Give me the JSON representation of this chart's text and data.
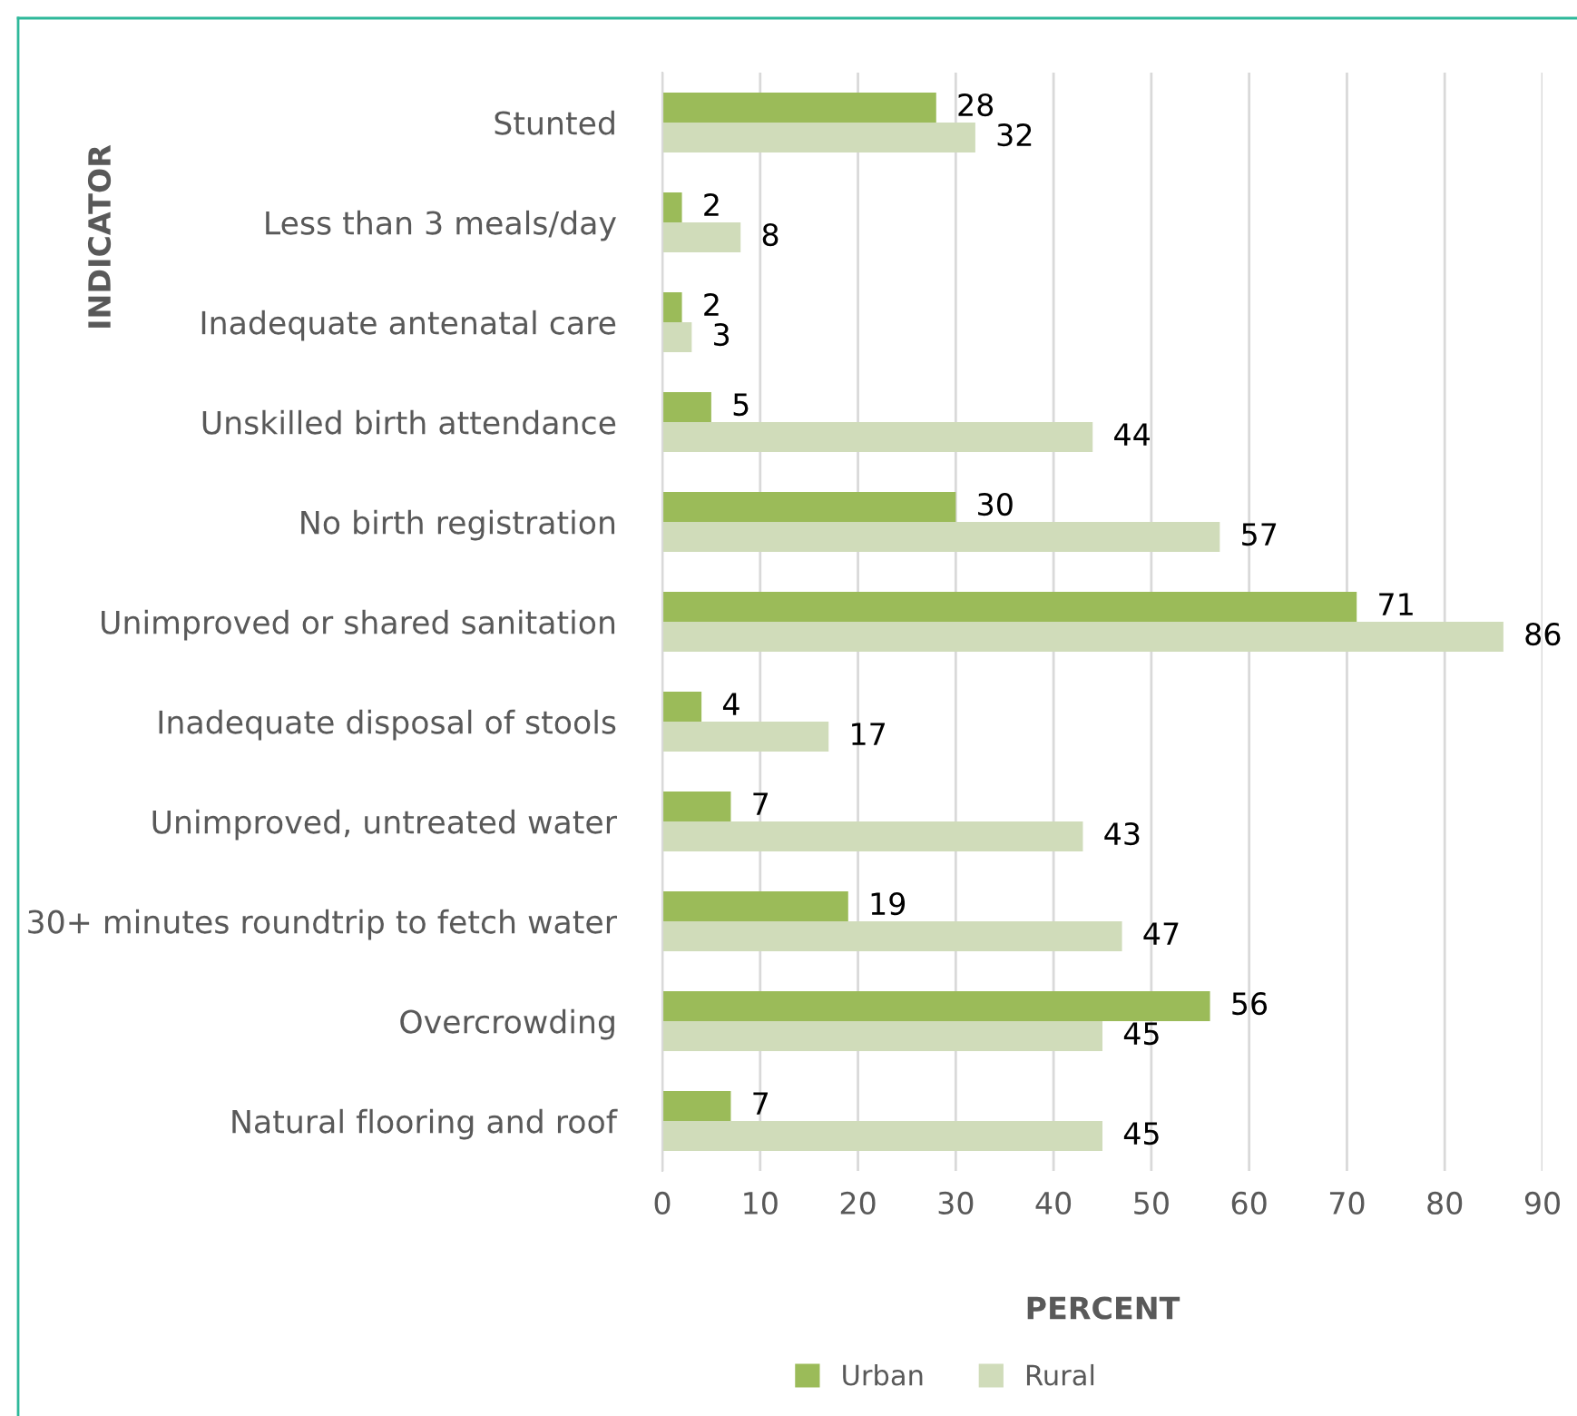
{
  "chart_data": {
    "type": "bar",
    "orientation": "horizontal",
    "xlabel": "PERCENT",
    "ylabel": "INDICATOR",
    "categories": [
      "Stunted",
      "Less than 3 meals/day",
      "Inadequate antenatal care",
      "Unskilled birth attendance",
      "No birth registration",
      "Unimproved or shared sanitation",
      "Inadequate disposal of stools",
      "Unimproved, untreated water",
      "30+ minutes roundtrip to fetch water",
      "Overcrowding",
      "Natural flooring and roof"
    ],
    "series": [
      {
        "name": "Urban",
        "color": "#9bbb59",
        "values": [
          28,
          2,
          2,
          5,
          30,
          71,
          4,
          7,
          19,
          56,
          7
        ]
      },
      {
        "name": "Rural",
        "color": "#d0dcba",
        "values": [
          32,
          8,
          3,
          44,
          57,
          86,
          17,
          43,
          47,
          45,
          45
        ]
      }
    ],
    "xlim": [
      0,
      90
    ],
    "xticks": [
      0,
      10,
      20,
      30,
      40,
      50,
      60,
      70,
      80,
      90
    ],
    "grid": "x",
    "legend": "bottom",
    "data_labels": true
  }
}
